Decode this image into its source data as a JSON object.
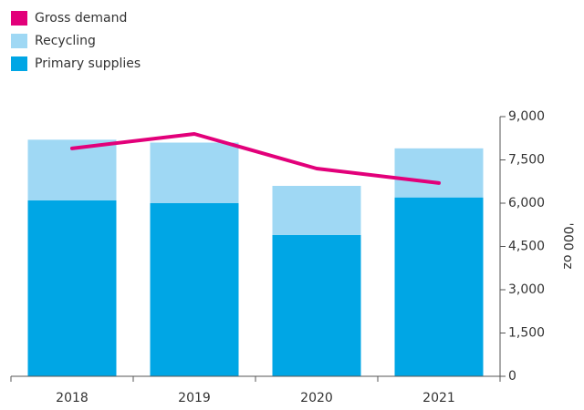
{
  "chart_data": {
    "type": "bar",
    "stacked": true,
    "categories": [
      "2018",
      "2019",
      "2020",
      "2021"
    ],
    "series": [
      {
        "name": "Gross demand",
        "type": "line",
        "color": "#e2007a",
        "values": [
          7900,
          8400,
          7200,
          6700
        ]
      },
      {
        "name": "Recycling",
        "type": "bar",
        "color": "#9fd8f4",
        "values": [
          2100,
          2100,
          1700,
          1700
        ]
      },
      {
        "name": "Primary supplies",
        "type": "bar",
        "color": "#00a6e5",
        "values": [
          6100,
          6000,
          4900,
          6200
        ]
      }
    ],
    "y_label": "'000 oz",
    "ylim": [
      0,
      9000
    ],
    "yticks": [
      0,
      {
        "value": 1500,
        "label": "1,500"
      },
      {
        "value": 3000,
        "label": "3,000"
      },
      {
        "value": 4500,
        "label": "4,500"
      },
      {
        "value": 6000,
        "label": "6,000"
      },
      {
        "value": 7500,
        "label": "7,500"
      },
      {
        "value": 9000,
        "label": "9,000"
      }
    ],
    "legend": "top-left"
  }
}
